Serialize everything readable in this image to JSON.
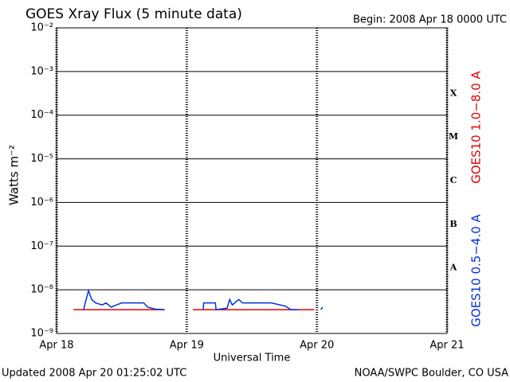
{
  "chart_data": {
    "type": "line",
    "title": "GOES Xray Flux (5 minute data)",
    "subtitle": "Begin:  2008 Apr 18 0000 UTC",
    "xlabel": "Universal Time",
    "ylabel": "Watts m⁻²",
    "footer_left": "Updated 2008 Apr 20 01:25:02 UTC",
    "footer_right": "NOAA/SWPC Boulder, CO USA",
    "xlim": [
      0,
      3
    ],
    "xticks": [
      {
        "value": 0,
        "label": "Apr 18"
      },
      {
        "value": 1,
        "label": "Apr 19"
      },
      {
        "value": 2,
        "label": "Apr 20"
      },
      {
        "value": 3,
        "label": "Apr 21"
      }
    ],
    "ylog": true,
    "ylim": [
      1e-09,
      0.01
    ],
    "yticks": [
      {
        "value": 1e-09,
        "label": "10⁻⁹"
      },
      {
        "value": 1e-08,
        "label": "10⁻⁸"
      },
      {
        "value": 1e-07,
        "label": "10⁻⁷"
      },
      {
        "value": 1e-06,
        "label": "10⁻⁶"
      },
      {
        "value": 1e-05,
        "label": "10⁻⁵"
      },
      {
        "value": 0.0001,
        "label": "10⁻⁴"
      },
      {
        "value": 0.001,
        "label": "10⁻³"
      },
      {
        "value": 0.01,
        "label": "10⁻²"
      }
    ],
    "grid": true,
    "flare_classes": [
      {
        "label": "A",
        "value": 1e-08
      },
      {
        "label": "B",
        "value": 1e-07
      },
      {
        "label": "C",
        "value": 1e-06
      },
      {
        "label": "M",
        "value": 1e-05
      },
      {
        "label": "X",
        "value": 0.0001
      }
    ],
    "series": [
      {
        "name": "GOES10 1.0−8.0 A",
        "color": "#e00000",
        "x": [
          0.13,
          0.83,
          0.9,
          1.047,
          1.98
        ],
        "values": [
          3.5e-09,
          3.5e-09,
          null,
          3.5e-09,
          3.5e-09
        ]
      },
      {
        "name": "GOES10 0.5−4.0 A",
        "color": "#0030e0",
        "x": [
          0.208,
          0.22,
          0.245,
          0.27,
          0.3,
          0.35,
          0.38,
          0.42,
          0.46,
          0.5,
          0.67,
          0.7,
          0.76,
          0.83,
          0.9,
          1.127,
          1.13,
          1.22,
          1.225,
          1.31,
          1.33,
          1.35,
          1.4,
          1.43,
          1.65,
          1.76,
          1.8,
          1.86,
          1.95,
          2.03,
          2.045
        ],
        "values": [
          3.5e-09,
          5e-09,
          9.5e-09,
          6e-09,
          5e-09,
          4.5e-09,
          5e-09,
          4e-09,
          4.5e-09,
          5e-09,
          5e-09,
          4e-09,
          3.6e-09,
          3.5e-09,
          null,
          3.5e-09,
          5e-09,
          5e-09,
          3.5e-09,
          3.8e-09,
          6e-09,
          4.5e-09,
          6e-09,
          5e-09,
          5e-09,
          4.2e-09,
          3.5e-09,
          3.5e-09,
          null,
          3.5e-09,
          4e-09
        ]
      }
    ]
  }
}
